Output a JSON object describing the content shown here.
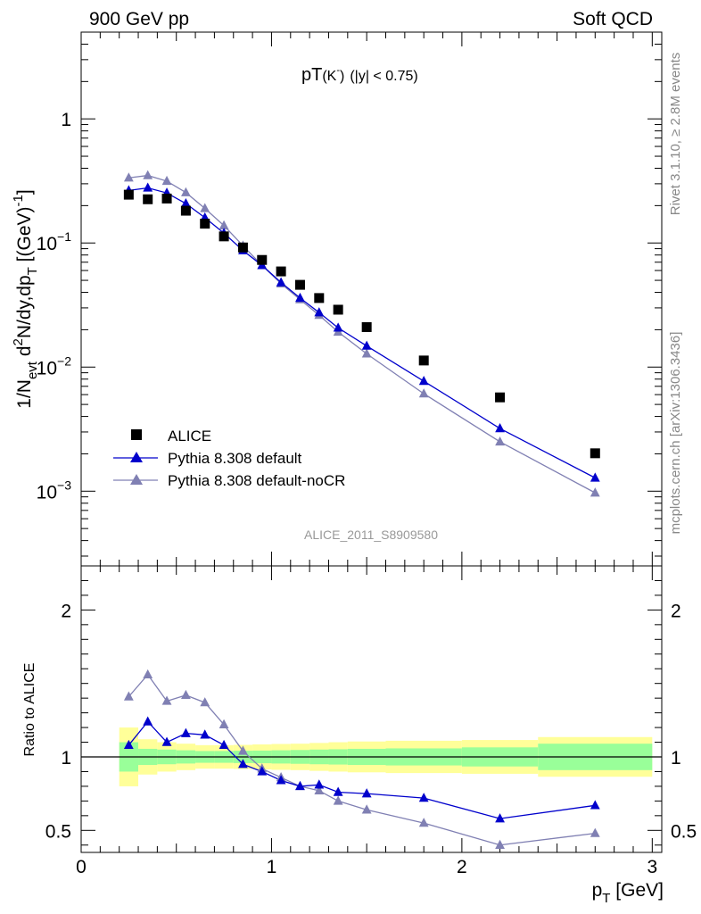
{
  "header": {
    "left_title": "900 GeV pp",
    "right_title": "Soft QCD"
  },
  "side_text": {
    "rivet": "Rivet 3.1.10, ≥ 2.8M events",
    "mcplots": "mcplots.cern.ch [arXiv:1306.3436]"
  },
  "chart_data": [
    {
      "type": "scatter",
      "panel": "main",
      "title_main": "pT",
      "title_particle": "(K",
      "title_charge": "-",
      "title_close": ")",
      "title_cut": "(|y| < 0.75)",
      "ylabel": "1/N_evt d²N/dy,dp_T [(GeV)⁻¹]",
      "ylabel_parts": {
        "p1": "1/N",
        "sub1": "evt",
        "p2": " d",
        "sup1": "2",
        "p3": "N/dy,dp",
        "sub2": "T",
        "p4": " [(GeV)",
        "sup2": "-1",
        "p5": "]"
      },
      "yscale": "log",
      "ylim": [
        0.00025,
        5
      ],
      "xlim": [
        0,
        3.05
      ],
      "ytick_labels": [
        {
          "value": 1,
          "base": "1",
          "exp": ""
        },
        {
          "value": 0.1,
          "base": "10",
          "exp": "−1"
        },
        {
          "value": 0.01,
          "base": "10",
          "exp": "−2"
        },
        {
          "value": 0.001,
          "base": "10",
          "exp": "−3"
        }
      ],
      "watermark": "ALICE_2011_S8909580",
      "legend_position": "lower-left",
      "series": [
        {
          "name": "ALICE",
          "marker": "square",
          "color": "#000000",
          "x": [
            0.25,
            0.35,
            0.45,
            0.55,
            0.65,
            0.75,
            0.85,
            0.95,
            1.05,
            1.15,
            1.25,
            1.35,
            1.5,
            1.8,
            2.2,
            2.7
          ],
          "y": [
            0.245,
            0.225,
            0.228,
            0.182,
            0.143,
            0.113,
            0.092,
            0.073,
            0.059,
            0.046,
            0.036,
            0.029,
            0.021,
            0.0113,
            0.0057,
            0.00202
          ]
        },
        {
          "name": "Pythia 8.308 default",
          "marker": "triangle",
          "color": "#0000cc",
          "x": [
            0.25,
            0.35,
            0.45,
            0.55,
            0.65,
            0.75,
            0.85,
            0.95,
            1.05,
            1.15,
            1.25,
            1.35,
            1.5,
            1.8,
            2.2,
            2.7
          ],
          "y": [
            0.265,
            0.278,
            0.253,
            0.208,
            0.16,
            0.12,
            0.087,
            0.066,
            0.048,
            0.036,
            0.0275,
            0.0207,
            0.0148,
            0.0077,
            0.0032,
            0.00128
          ]
        },
        {
          "name": "Pythia 8.308 default-noCR",
          "marker": "triangle",
          "color": "#8080b3",
          "x": [
            0.25,
            0.35,
            0.45,
            0.55,
            0.65,
            0.75,
            0.85,
            0.95,
            1.05,
            1.15,
            1.25,
            1.35,
            1.5,
            1.8,
            2.2,
            2.7
          ],
          "y": [
            0.335,
            0.35,
            0.315,
            0.255,
            0.19,
            0.138,
            0.095,
            0.066,
            0.047,
            0.035,
            0.0262,
            0.0192,
            0.0128,
            0.0061,
            0.0025,
            0.00097
          ]
        }
      ]
    },
    {
      "type": "line",
      "panel": "ratio",
      "ylabel": "Ratio to ALICE",
      "xlabel": "p_T [GeV]",
      "xlabel_parts": {
        "p": "p",
        "sub": "T",
        "unit": " [GeV]"
      },
      "xlim": [
        0,
        3.05
      ],
      "ylim": [
        0.35,
        2.3
      ],
      "xtick_labels": [
        {
          "value": 0,
          "label": "0"
        },
        {
          "value": 1,
          "label": "1"
        },
        {
          "value": 2,
          "label": "2"
        },
        {
          "value": 3,
          "label": "3"
        }
      ],
      "ytick_labels": [
        {
          "value": 0.5,
          "label": "0.5"
        },
        {
          "value": 1,
          "label": "1"
        },
        {
          "value": 2,
          "label": "2"
        }
      ],
      "reference_line": 1,
      "uncertainty_bands": {
        "bins": [
          [
            0.2,
            0.3
          ],
          [
            0.3,
            0.4
          ],
          [
            0.4,
            0.5
          ],
          [
            0.5,
            0.6
          ],
          [
            0.6,
            0.7
          ],
          [
            0.7,
            0.8
          ],
          [
            0.8,
            0.9
          ],
          [
            0.9,
            1.0
          ],
          [
            1.0,
            1.1
          ],
          [
            1.1,
            1.2
          ],
          [
            1.2,
            1.3
          ],
          [
            1.3,
            1.4
          ],
          [
            1.4,
            1.6
          ],
          [
            1.6,
            2.0
          ],
          [
            2.0,
            2.4
          ],
          [
            2.4,
            3.0
          ]
        ],
        "stat_color": "#99ff99",
        "syst_color": "#ffff99",
        "inner": [
          0.1,
          0.055,
          0.05,
          0.045,
          0.04,
          0.04,
          0.042,
          0.043,
          0.045,
          0.047,
          0.05,
          0.052,
          0.055,
          0.058,
          0.065,
          0.09
        ],
        "outer": [
          0.2,
          0.12,
          0.1,
          0.09,
          0.08,
          0.08,
          0.082,
          0.085,
          0.088,
          0.09,
          0.095,
          0.1,
          0.105,
          0.11,
          0.115,
          0.135
        ]
      },
      "series": [
        {
          "name": "Pythia 8.308 default",
          "marker": "triangle",
          "color": "#0000cc",
          "x": [
            0.25,
            0.35,
            0.45,
            0.55,
            0.65,
            0.75,
            0.85,
            0.95,
            1.05,
            1.15,
            1.25,
            1.35,
            1.5,
            1.8,
            2.2,
            2.7
          ],
          "y": [
            1.08,
            1.24,
            1.1,
            1.16,
            1.15,
            1.08,
            0.95,
            0.9,
            0.84,
            0.8,
            0.81,
            0.76,
            0.75,
            0.72,
            0.58,
            0.67
          ]
        },
        {
          "name": "Pythia 8.308 default-noCR",
          "marker": "triangle",
          "color": "#8080b3",
          "x": [
            0.25,
            0.35,
            0.45,
            0.55,
            0.65,
            0.75,
            0.85,
            0.95,
            1.05,
            1.15,
            1.25,
            1.35,
            1.5,
            1.8,
            2.2,
            2.7
          ],
          "y": [
            1.41,
            1.56,
            1.38,
            1.42,
            1.37,
            1.22,
            1.04,
            0.92,
            0.86,
            0.8,
            0.77,
            0.7,
            0.64,
            0.55,
            0.4,
            0.48
          ]
        }
      ]
    }
  ]
}
